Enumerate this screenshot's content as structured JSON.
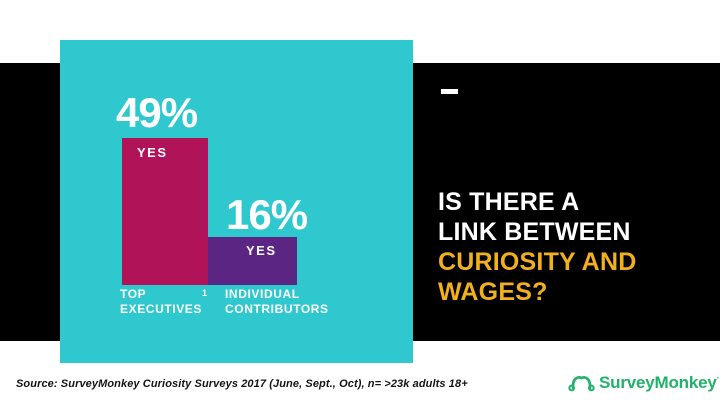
{
  "slide": {
    "header": {
      "accent_dash_icon": "horizontal-dash"
    },
    "title": {
      "lines": [
        "IS THERE A",
        "LINK BETWEEN",
        "CURIOSITY AND",
        "WAGES?"
      ],
      "white_color": "#FFFFFF",
      "highlight_color": "#F2B01E"
    },
    "footer": {
      "source": "Source: SurveyMonkey Curiosity Surveys 2017 (June, Sept., Oct), n= >23k adults 18+",
      "logo": {
        "icon": "surveymonkey-monkey-icon",
        "text": "SurveyMonkey",
        "trademark": "·",
        "color": "#21B168"
      }
    }
  },
  "chart_data": {
    "type": "bar",
    "title": "",
    "categories": [
      "TOP EXECUTIVES",
      "INDIVIDUAL CONTRIBUTORS"
    ],
    "category_lines": [
      [
        "TOP",
        "EXECUTIVES"
      ],
      [
        "INDIVIDUAL",
        "CONTRIBUTORS"
      ]
    ],
    "values": [
      49,
      16
    ],
    "value_labels": [
      "49%",
      "16%"
    ],
    "bar_inner_labels": [
      "YES",
      "YES"
    ],
    "footnote_marker": "1",
    "bar_colors": [
      "#B01358",
      "#5B2583"
    ],
    "panel_background": "#2EC8CE",
    "ylim": [
      0,
      100
    ],
    "units": "percent of respondents answering YES",
    "pixels_per_unit": 3,
    "legend": "none",
    "grid": false
  }
}
